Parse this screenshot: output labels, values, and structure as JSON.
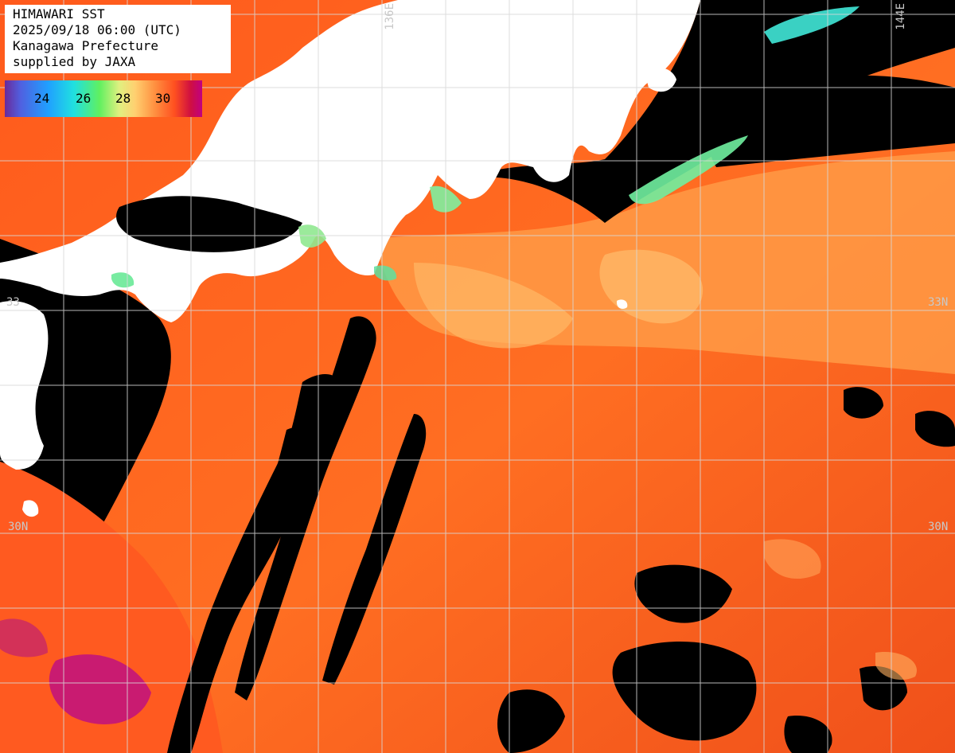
{
  "header": {
    "title": "HIMAWARI SST",
    "datetime": "2025/09/18 06:00 (UTC)",
    "prefecture": "Kanagawa Prefecture",
    "credit": "supplied by JAXA"
  },
  "legend": {
    "ticks": [
      "24",
      "26",
      "28",
      "30"
    ],
    "unit_colors": [
      "#6a2a9a",
      "#20a0ff",
      "#60f060",
      "#ffd070",
      "#ff5020",
      "#c00080"
    ]
  },
  "grid_labels": {
    "lon_136": "136E",
    "lon_144": "144E",
    "lat_33_right": "33N",
    "lat_30_left": "30N",
    "lat_30_right": "30N",
    "lat_33_left": "33"
  },
  "colors": {
    "land": "#ffffff",
    "no_data": "#000000",
    "gridline": "#d0d0d0",
    "sea_warm": "#ff6a20",
    "sea_warmer": "#e8401a",
    "sea_mild": "#ff9a40",
    "sea_cool": "#ffc46a",
    "sea_cold": "#50e8c0",
    "sea_hot": "#c01080"
  }
}
